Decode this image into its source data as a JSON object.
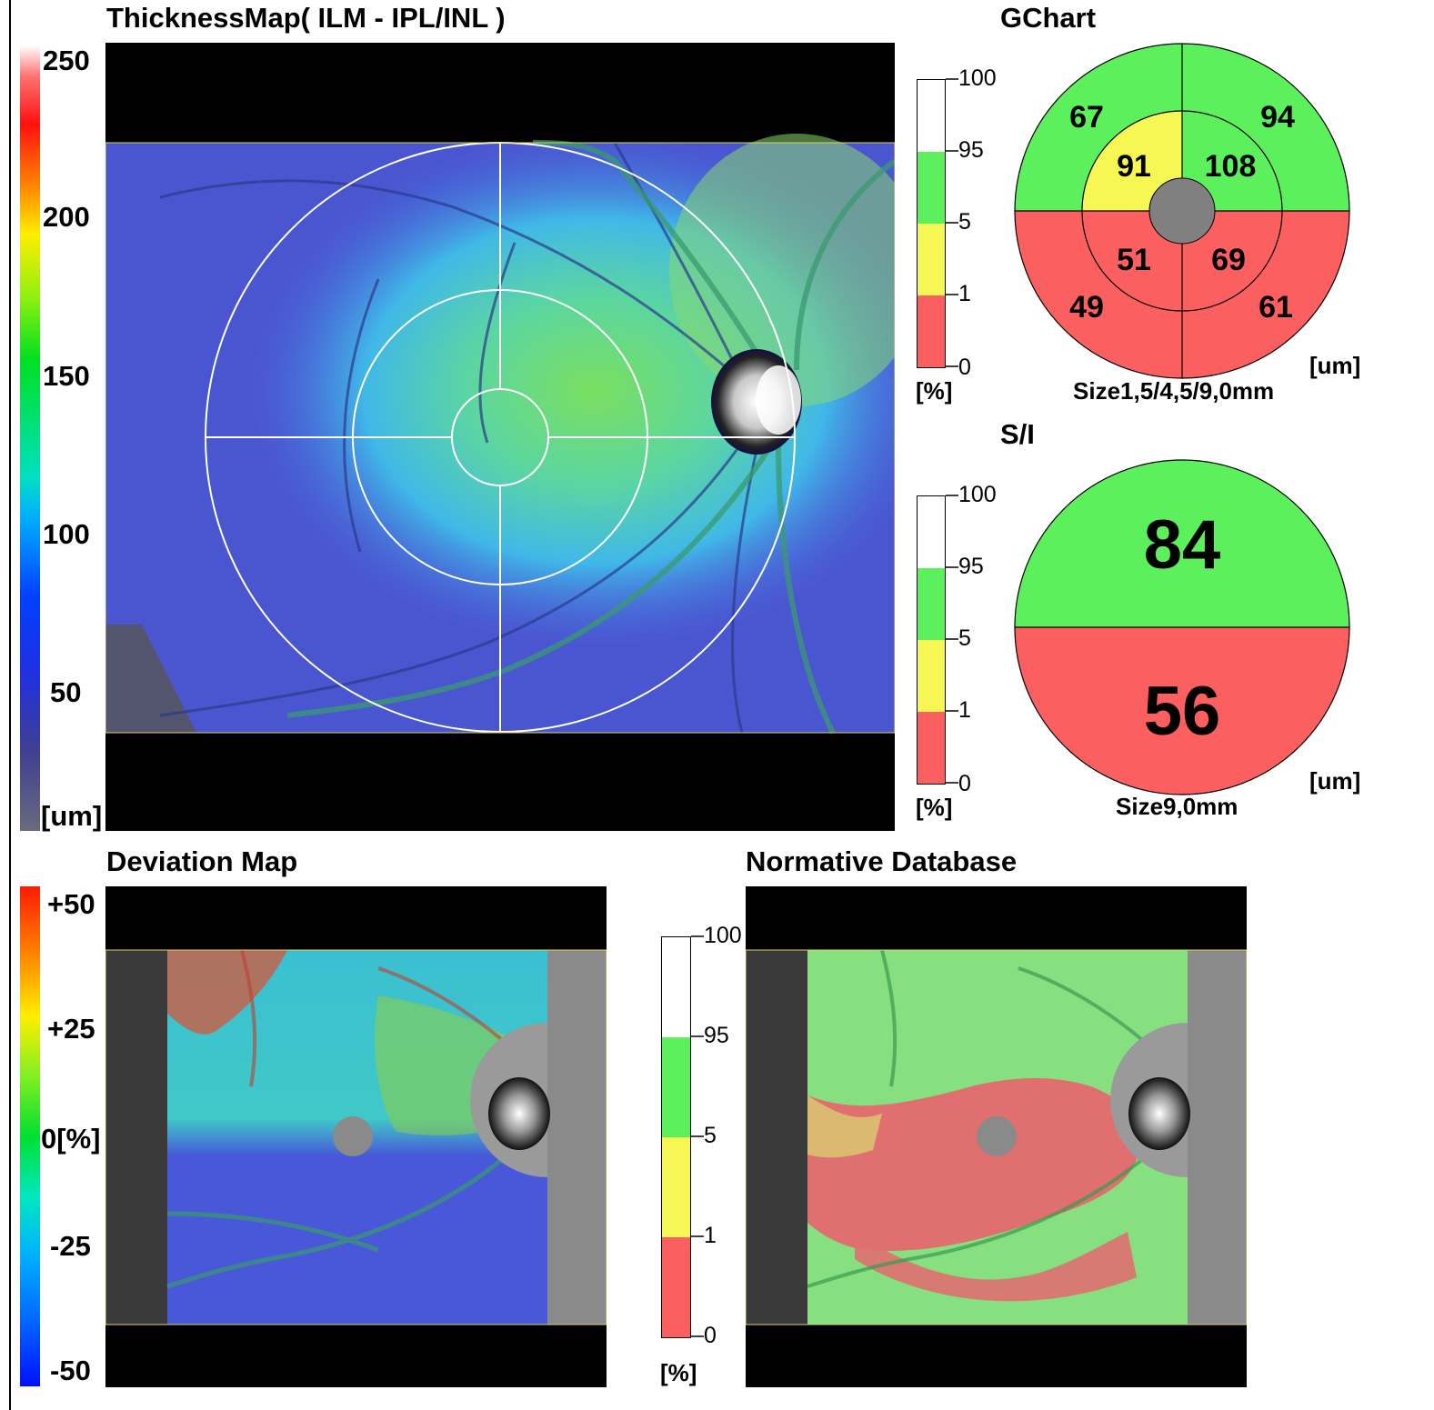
{
  "thickness_map": {
    "title": "ThicknessMap( ILM - IPL/INL )",
    "scale_ticks": [
      "250",
      "200",
      "150",
      "100",
      "50"
    ],
    "scale_unit": "[um]"
  },
  "gchart": {
    "title": "GChart",
    "sectors": {
      "outer_superior_temporal": "67",
      "outer_superior_nasal": "94",
      "inner_superior_temporal": "91",
      "inner_superior_nasal": "108",
      "inner_inferior_temporal": "51",
      "inner_inferior_nasal": "69",
      "outer_inferior_temporal": "49",
      "outer_inferior_nasal": "61"
    },
    "unit": "[um]",
    "size_label": "Size1,5/4,5/9,0mm"
  },
  "si_chart": {
    "title": "S/I",
    "superior": "84",
    "inferior": "56",
    "unit": "[um]",
    "size_label": "Size9,0mm"
  },
  "percentile_scale": {
    "ticks": [
      "100",
      "95",
      "5",
      "1",
      "0"
    ],
    "unit": "[%]"
  },
  "deviation_map": {
    "title": "Deviation Map",
    "scale_ticks": [
      "+50",
      "+25",
      "0[%]",
      "-25",
      "-50"
    ]
  },
  "normative_database": {
    "title": "Normative Database"
  },
  "colors": {
    "normal_green": "#5cf05c",
    "borderline_yellow": "#f7f753",
    "abnormal_red": "#fc5f5f",
    "center_gray": "#808080"
  }
}
